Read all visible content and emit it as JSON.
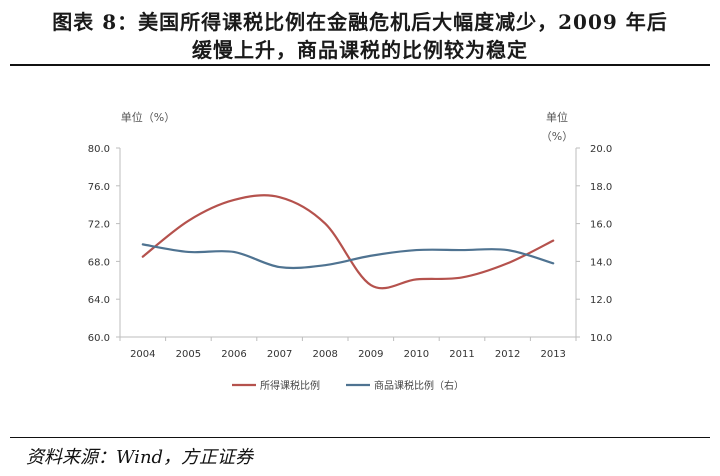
{
  "header": {
    "title_line1": "图表 8：美国所得课税比例在金融危机后大幅度减少，2009 年后",
    "title_line2": "缓慢上升，商品课税的比例较为稳定"
  },
  "footer": {
    "source": "资料来源：Wind，方正证券"
  },
  "chart_data": {
    "type": "line",
    "x": [
      "2004",
      "2005",
      "2006",
      "2007",
      "2008",
      "2009",
      "2010",
      "2011",
      "2012",
      "2013"
    ],
    "left_axis": {
      "unit_label": "单位（%）",
      "ylim": [
        60.0,
        80.0
      ],
      "ticks": [
        "60.0",
        "64.0",
        "68.0",
        "72.0",
        "76.0",
        "80.0"
      ]
    },
    "right_axis": {
      "unit_label_line1": "单位",
      "unit_label_line2": "（%）",
      "ylim": [
        10.0,
        20.0
      ],
      "ticks": [
        "10.0",
        "12.0",
        "14.0",
        "16.0",
        "18.0",
        "20.0"
      ]
    },
    "series": [
      {
        "name": "所得课税比例",
        "axis": "left",
        "color": "#b5524d",
        "values": [
          68.5,
          72.3,
          74.5,
          74.8,
          72.0,
          65.5,
          66.1,
          66.3,
          67.8,
          70.2
        ]
      },
      {
        "name": "商品课税比例（右）",
        "axis": "right",
        "color": "#4f7391",
        "values": [
          14.9,
          14.5,
          14.5,
          13.7,
          13.8,
          14.3,
          14.6,
          14.6,
          14.6,
          13.9
        ]
      }
    ],
    "grid": false,
    "legend_position": "bottom"
  }
}
